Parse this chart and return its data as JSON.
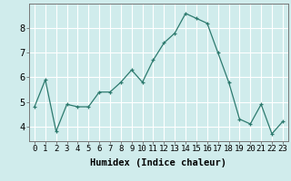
{
  "x": [
    0,
    1,
    2,
    3,
    4,
    5,
    6,
    7,
    8,
    9,
    10,
    11,
    12,
    13,
    14,
    15,
    16,
    17,
    18,
    19,
    20,
    21,
    22,
    23
  ],
  "y": [
    4.8,
    5.9,
    3.8,
    4.9,
    4.8,
    4.8,
    5.4,
    5.4,
    5.8,
    6.3,
    5.8,
    6.7,
    7.4,
    7.8,
    8.6,
    8.4,
    8.2,
    7.0,
    5.8,
    4.3,
    4.1,
    4.9,
    3.7,
    4.2
  ],
  "xlabel": "Humidex (Indice chaleur)",
  "xticks": [
    0,
    1,
    2,
    3,
    4,
    5,
    6,
    7,
    8,
    9,
    10,
    11,
    12,
    13,
    14,
    15,
    16,
    17,
    18,
    19,
    20,
    21,
    22,
    23
  ],
  "yticks": [
    4,
    5,
    6,
    7,
    8
  ],
  "ylim": [
    3.4,
    9.0
  ],
  "xlim": [
    -0.5,
    23.5
  ],
  "line_color": "#2d7a6e",
  "marker": "+",
  "bg_color": "#d0ecec",
  "grid_color": "#ffffff",
  "tick_label_fontsize": 6.5,
  "xlabel_fontsize": 7.5
}
